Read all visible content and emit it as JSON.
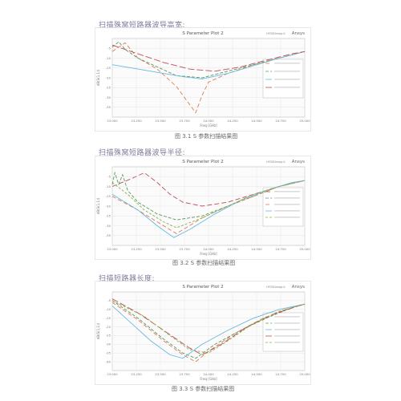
{
  "panels": [
    {
      "heading": "扫描殊窝短路器波导高宽:",
      "caption": "图 3.1 S 参数扫描结果图",
      "chart_data": {
        "type": "line",
        "title": "S Parameter Plot 2",
        "brand": "HFSSDesign1",
        "logo": "Ansys",
        "xlabel": "Freq [GHz]",
        "ylabel": "dB(S(1,1))",
        "xlim": [
          22.5,
          24.0
        ],
        "ylim": [
          -36,
          0
        ],
        "xticks": [
          "23.000",
          "23.250",
          "23.500",
          "23.750",
          "24.000",
          "24.250",
          "24.500",
          "24.750",
          "25.000"
        ],
        "yticks": [
          "-5",
          "-10",
          "-15",
          "-20",
          "-25",
          "-30",
          "-35"
        ],
        "series": [
          {
            "color": "#e07a5a",
            "dash": "5,3",
            "x": [
              22.5,
              22.6,
              22.7,
              22.85,
              23.0,
              23.1,
              23.15,
              23.2,
              23.25,
              23.4,
              23.6,
              23.8,
              24.0
            ],
            "y": [
              -6,
              -2,
              -9,
              -14,
              -22,
              -30,
              -34,
              -26,
              -20,
              -16,
              -12,
              -9,
              -6
            ]
          },
          {
            "color": "#5a9a5a",
            "dash": "4,2",
            "x": [
              22.5,
              22.55,
              22.6,
              22.7,
              22.85,
              23.0,
              23.2,
              23.4,
              23.6,
              23.8,
              24.0
            ],
            "y": [
              -4,
              -1.5,
              -5,
              -9,
              -13,
              -17,
              -18,
              -15,
              -12,
              -9,
              -6
            ]
          },
          {
            "color": "#6ab8e0",
            "dash": "",
            "x": [
              22.5,
              22.7,
              22.9,
              23.05,
              23.2,
              23.4,
              23.6,
              23.8,
              24.0
            ],
            "y": [
              -12,
              -14,
              -16,
              -17.5,
              -18.5,
              -16,
              -12.5,
              -9,
              -6
            ]
          },
          {
            "color": "#c04a5a",
            "dash": "8,3",
            "x": [
              22.5,
              22.7,
              22.9,
              23.1,
              23.3,
              23.5,
              23.7,
              23.9,
              24.0
            ],
            "y": [
              -3,
              -7,
              -11,
              -14,
              -15,
              -13,
              -10,
              -7,
              -6
            ]
          }
        ]
      }
    },
    {
      "heading": "扫描殊窝短路器波导半径:",
      "caption": "图 3.2 S 参数扫描结果图",
      "chart_data": {
        "type": "line",
        "title": "S Parameter Plot 2",
        "brand": "HFSSDesign1",
        "logo": "Ansys",
        "xlabel": "Freq [GHz]",
        "ylabel": "dB(S(1,1))",
        "xlim": [
          22.5,
          24.0
        ],
        "ylim": [
          -40,
          0
        ],
        "xticks": [
          "23.000",
          "23.250",
          "23.500",
          "23.750",
          "24.000",
          "24.250",
          "24.500",
          "24.750",
          "25.000"
        ],
        "yticks": [
          "-5",
          "-10",
          "-15",
          "-20",
          "-25",
          "-30",
          "-35"
        ],
        "series": [
          {
            "color": "#c04a5a",
            "dash": "6,3",
            "x": [
              22.5,
              22.65,
              22.75,
              22.85,
              22.95,
              23.05,
              23.2,
              23.4,
              23.6,
              23.8,
              24.0
            ],
            "y": [
              -10,
              -6,
              -3,
              -8,
              -14,
              -18,
              -20,
              -18,
              -14,
              -10,
              -7
            ]
          },
          {
            "color": "#5a9a5a",
            "dash": "4,2",
            "x": [
              22.5,
              22.52,
              22.55,
              22.58,
              22.62,
              22.7,
              22.85,
              23.0,
              23.2,
              23.4,
              23.6,
              23.8,
              24.0
            ],
            "y": [
              -9,
              -3,
              -9,
              -4,
              -12,
              -18,
              -24,
              -27,
              -25,
              -20,
              -15,
              -10,
              -7
            ]
          },
          {
            "color": "#e07a5a",
            "dash": "5,3",
            "x": [
              22.5,
              22.7,
              22.85,
              23.0,
              23.1,
              23.2,
              23.4,
              23.6,
              23.8,
              24.0
            ],
            "y": [
              -15,
              -22,
              -28,
              -34,
              -30,
              -26,
              -20,
              -15,
              -10,
              -7
            ]
          },
          {
            "color": "#6ab8e0",
            "dash": "",
            "x": [
              22.5,
              22.7,
              22.85,
              22.98,
              23.1,
              23.3,
              23.5,
              23.7,
              23.9,
              24.0
            ],
            "y": [
              -14,
              -22,
              -30,
              -36,
              -32,
              -24,
              -17,
              -12,
              -8,
              -7
            ]
          },
          {
            "color": "#8ab048",
            "dash": "3,2",
            "x": [
              22.5,
              22.62,
              22.75,
              22.9,
              23.0,
              23.2,
              23.4,
              23.6,
              23.8,
              24.0
            ],
            "y": [
              -8,
              -14,
              -22,
              -28,
              -31,
              -26,
              -20,
              -14,
              -10,
              -7
            ]
          }
        ]
      }
    },
    {
      "heading": "扫描短路器长度:",
      "caption": "图 3.3 S 参数扫描结果图",
      "chart_data": {
        "type": "line",
        "title": "S Parameter Plot 2",
        "brand": "HFSSDesign1",
        "logo": "Ansys",
        "xlabel": "Freq [GHz]",
        "ylabel": "dB(S(1,1))",
        "xlim": [
          22.5,
          24.0
        ],
        "ylim": [
          -45,
          0
        ],
        "xticks": [
          "23.000",
          "23.250",
          "23.500",
          "23.750",
          "24.000",
          "24.250",
          "24.500",
          "24.750",
          "25.000"
        ],
        "yticks": [
          "-5",
          "-10",
          "-15",
          "-20",
          "-25",
          "-30",
          "-35",
          "-40"
        ],
        "series": [
          {
            "color": "#e07a5a",
            "dash": "5,3",
            "x": [
              22.5,
              22.7,
              22.9,
              23.05,
              23.15,
              23.25,
              23.45,
              23.65,
              23.85,
              24.0
            ],
            "y": [
              -6,
              -16,
              -28,
              -36,
              -40,
              -34,
              -24,
              -16,
              -10,
              -7
            ]
          },
          {
            "color": "#5a9a5a",
            "dash": "4,2",
            "x": [
              22.5,
              22.7,
              22.9,
              23.05,
              23.15,
              23.3,
              23.5,
              23.7,
              23.9,
              24.0
            ],
            "y": [
              -5,
              -15,
              -27,
              -35,
              -38,
              -30,
              -22,
              -15,
              -9,
              -7
            ]
          },
          {
            "color": "#6ab8e0",
            "dash": "",
            "x": [
              22.5,
              22.65,
              22.8,
              22.95,
              23.05,
              23.2,
              23.4,
              23.6,
              23.8,
              24.0
            ],
            "y": [
              -8,
              -18,
              -28,
              -36,
              -38,
              -30,
              -22,
              -15,
              -10,
              -7
            ]
          },
          {
            "color": "#c04a5a",
            "dash": "8,3",
            "x": [
              22.5,
              22.7,
              22.9,
              23.1,
              23.2,
              23.35,
              23.55,
              23.75,
              23.95,
              24.0
            ],
            "y": [
              -4,
              -12,
              -22,
              -32,
              -36,
              -30,
              -20,
              -13,
              -8,
              -7
            ]
          },
          {
            "color": "#8ab048",
            "dash": "3,2",
            "x": [
              22.5,
              22.75,
              22.95,
              23.1,
              23.25,
              23.4,
              23.6,
              23.8,
              24.0
            ],
            "y": [
              -5,
              -14,
              -25,
              -33,
              -35,
              -28,
              -18,
              -11,
              -7
            ]
          }
        ]
      }
    }
  ]
}
